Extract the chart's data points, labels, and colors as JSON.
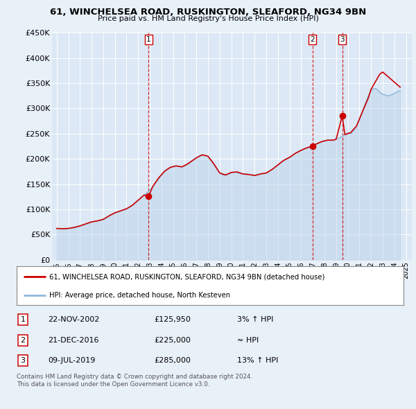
{
  "title1": "61, WINCHELSEA ROAD, RUSKINGTON, SLEAFORD, NG34 9BN",
  "title2": "Price paid vs. HM Land Registry's House Price Index (HPI)",
  "ylim": [
    0,
    450000
  ],
  "yticks": [
    0,
    50000,
    100000,
    150000,
    200000,
    250000,
    300000,
    350000,
    400000,
    450000
  ],
  "ytick_labels": [
    "£0",
    "£50K",
    "£100K",
    "£150K",
    "£200K",
    "£250K",
    "£300K",
    "£350K",
    "£400K",
    "£450K"
  ],
  "xlim_start": 1994.6,
  "xlim_end": 2025.5,
  "background_color": "#e8f0f8",
  "plot_bg_color": "#dce8f5",
  "grid_color": "#ffffff",
  "sale_line_color": "#cc0000",
  "hpi_line_color": "#90b8d8",
  "hpi_fill_color": "#b8d0e8",
  "sale_marker_color": "#cc0000",
  "sale_box_color": "#cc0000",
  "sales": [
    {
      "num": 1,
      "date": "22-NOV-2002",
      "price": 125950,
      "hpi_pct": "3% ↑ HPI",
      "x": 2002.9
    },
    {
      "num": 2,
      "date": "21-DEC-2016",
      "price": 225000,
      "hpi_pct": "≈ HPI",
      "x": 2016.97
    },
    {
      "num": 3,
      "date": "09-JUL-2019",
      "price": 285000,
      "hpi_pct": "13% ↑ HPI",
      "x": 2019.52
    }
  ],
  "legend_property": "61, WINCHELSEA ROAD, RUSKINGTON, SLEAFORD, NG34 9BN (detached house)",
  "legend_hpi": "HPI: Average price, detached house, North Kesteven",
  "footnote1": "Contains HM Land Registry data © Crown copyright and database right 2024.",
  "footnote2": "This data is licensed under the Open Government Licence v3.0.",
  "hpi_data": {
    "x": [
      1995.0,
      1995.25,
      1995.5,
      1995.75,
      1996.0,
      1996.25,
      1996.5,
      1996.75,
      1997.0,
      1997.25,
      1997.5,
      1997.75,
      1998.0,
      1998.25,
      1998.5,
      1998.75,
      1999.0,
      1999.25,
      1999.5,
      1999.75,
      2000.0,
      2000.25,
      2000.5,
      2000.75,
      2001.0,
      2001.25,
      2001.5,
      2001.75,
      2002.0,
      2002.25,
      2002.5,
      2002.75,
      2003.0,
      2003.25,
      2003.5,
      2003.75,
      2004.0,
      2004.25,
      2004.5,
      2004.75,
      2005.0,
      2005.25,
      2005.5,
      2005.75,
      2006.0,
      2006.25,
      2006.5,
      2006.75,
      2007.0,
      2007.25,
      2007.5,
      2007.75,
      2008.0,
      2008.25,
      2008.5,
      2008.75,
      2009.0,
      2009.25,
      2009.5,
      2009.75,
      2010.0,
      2010.25,
      2010.5,
      2010.75,
      2011.0,
      2011.25,
      2011.5,
      2011.75,
      2012.0,
      2012.25,
      2012.5,
      2012.75,
      2013.0,
      2013.25,
      2013.5,
      2013.75,
      2014.0,
      2014.25,
      2014.5,
      2014.75,
      2015.0,
      2015.25,
      2015.5,
      2015.75,
      2016.0,
      2016.25,
      2016.5,
      2016.75,
      2017.0,
      2017.25,
      2017.5,
      2017.75,
      2018.0,
      2018.25,
      2018.5,
      2018.75,
      2019.0,
      2019.25,
      2019.5,
      2019.75,
      2020.0,
      2020.25,
      2020.5,
      2020.75,
      2021.0,
      2021.25,
      2021.5,
      2021.75,
      2022.0,
      2022.25,
      2022.5,
      2022.75,
      2023.0,
      2023.25,
      2023.5,
      2023.75,
      2024.0,
      2024.25,
      2024.5
    ],
    "y": [
      62000,
      61500,
      61000,
      61000,
      62000,
      63000,
      64000,
      65500,
      67000,
      69000,
      71000,
      73000,
      75000,
      76000,
      77000,
      78500,
      80000,
      83000,
      87000,
      90000,
      93000,
      95000,
      97000,
      99000,
      101000,
      104000,
      108000,
      113000,
      118000,
      123000,
      128000,
      133000,
      138000,
      145000,
      153000,
      160000,
      168000,
      175000,
      180000,
      183000,
      185000,
      186000,
      185000,
      184000,
      186000,
      190000,
      194000,
      198000,
      202000,
      206000,
      208000,
      207000,
      205000,
      198000,
      190000,
      180000,
      172000,
      168000,
      168000,
      170000,
      173000,
      174000,
      173000,
      171000,
      170000,
      170000,
      169000,
      168000,
      167000,
      168000,
      170000,
      171000,
      172000,
      175000,
      179000,
      183000,
      188000,
      193000,
      197000,
      200000,
      203000,
      207000,
      211000,
      214000,
      217000,
      220000,
      222000,
      223000,
      226000,
      229000,
      232000,
      234000,
      236000,
      237000,
      237000,
      237000,
      239000,
      241000,
      244000,
      248000,
      252000,
      250000,
      256000,
      265000,
      278000,
      293000,
      310000,
      324000,
      335000,
      340000,
      338000,
      332000,
      328000,
      326000,
      325000,
      327000,
      330000,
      333000,
      335000
    ]
  },
  "property_data": {
    "x": [
      1995.0,
      1995.5,
      1996.0,
      1996.5,
      1997.0,
      1997.5,
      1998.0,
      1998.5,
      1999.0,
      1999.5,
      2000.0,
      2000.5,
      2001.0,
      2001.5,
      2002.0,
      2002.5,
      2002.9,
      2003.25,
      2003.75,
      2004.25,
      2004.75,
      2005.25,
      2005.75,
      2006.25,
      2006.75,
      2007.0,
      2007.5,
      2008.0,
      2008.5,
      2009.0,
      2009.5,
      2010.0,
      2010.5,
      2011.0,
      2011.5,
      2012.0,
      2012.5,
      2013.0,
      2013.5,
      2014.0,
      2014.5,
      2015.0,
      2015.5,
      2016.0,
      2016.5,
      2016.97,
      2017.25,
      2017.75,
      2018.25,
      2018.75,
      2019.0,
      2019.52,
      2019.75,
      2020.25,
      2020.75,
      2021.25,
      2021.75,
      2022.0,
      2022.5,
      2022.75,
      2023.0,
      2023.5,
      2024.0,
      2024.5
    ],
    "y": [
      62000,
      61500,
      62000,
      64000,
      67000,
      71000,
      75000,
      77000,
      80000,
      87000,
      93000,
      97000,
      101000,
      108000,
      118000,
      128000,
      125950,
      145000,
      162000,
      175000,
      183000,
      186000,
      184000,
      190000,
      198000,
      202000,
      208000,
      205000,
      190000,
      172000,
      168000,
      173000,
      174000,
      170000,
      169000,
      167000,
      170000,
      172000,
      179000,
      188000,
      197000,
      203000,
      211000,
      217000,
      222000,
      225000,
      229000,
      234000,
      237000,
      237000,
      239000,
      285000,
      248000,
      252000,
      265000,
      293000,
      320000,
      338000,
      358000,
      368000,
      372000,
      362000,
      352000,
      342000
    ]
  },
  "xtick_years": [
    1995,
    1996,
    1997,
    1998,
    1999,
    2000,
    2001,
    2002,
    2003,
    2004,
    2005,
    2006,
    2007,
    2008,
    2009,
    2010,
    2011,
    2012,
    2013,
    2014,
    2015,
    2016,
    2017,
    2018,
    2019,
    2020,
    2021,
    2022,
    2023,
    2024,
    2025
  ]
}
